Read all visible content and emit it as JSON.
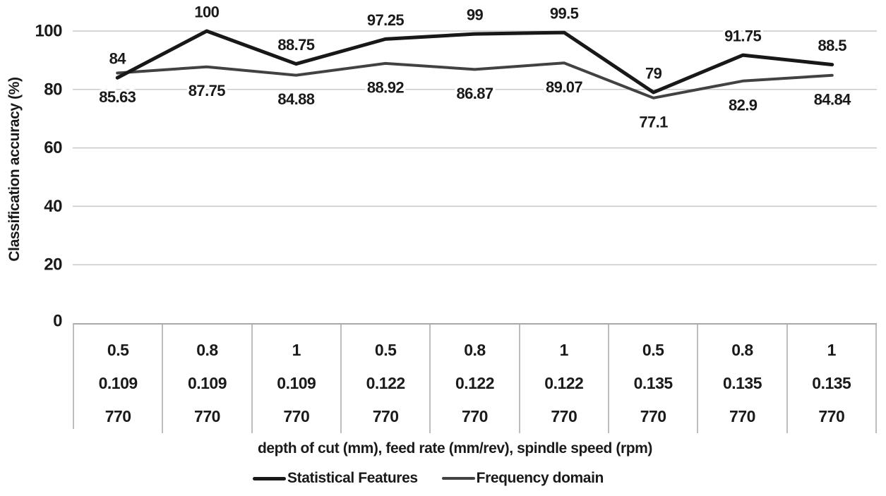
{
  "chart_data": {
    "type": "line",
    "title": "",
    "ylabel": "Classification accuracy (%)",
    "xlabel": "depth of cut (mm), feed rate (mm/rev), spindle speed (rpm)",
    "ylim": [
      0,
      100
    ],
    "yticks": [
      "0",
      "20",
      "40",
      "60",
      "80",
      "100"
    ],
    "grid": true,
    "legend_position": "bottom",
    "categories": [
      [
        "0.5",
        "0.109",
        "770"
      ],
      [
        "0.8",
        "0.109",
        "770"
      ],
      [
        "1",
        "0.109",
        "770"
      ],
      [
        "0.5",
        "0.122",
        "770"
      ],
      [
        "0.8",
        "0.122",
        "770"
      ],
      [
        "1",
        "0.122",
        "770"
      ],
      [
        "0.5",
        "0.135",
        "770"
      ],
      [
        "0.8",
        "0.135",
        "770"
      ],
      [
        "1",
        "0.135",
        "770"
      ]
    ],
    "series": [
      {
        "name": "Statistical Features",
        "color": "#181818",
        "stroke_width": 5,
        "label_position": "above",
        "values": [
          84,
          100,
          88.75,
          97.25,
          99,
          99.5,
          79,
          91.75,
          88.5
        ],
        "labels": [
          "84",
          "100",
          "88.75",
          "97.25",
          "99",
          "99.5",
          "79",
          "91.75",
          "88.5"
        ]
      },
      {
        "name": "Frequency domain",
        "color": "#424242",
        "stroke_width": 4,
        "label_position": "below",
        "values": [
          85.63,
          87.75,
          84.88,
          88.92,
          86.87,
          89.07,
          77.1,
          82.9,
          84.84
        ],
        "labels": [
          "85.63",
          "87.75",
          "84.88",
          "88.92",
          "86.87",
          "89.07",
          "77.1",
          "82.9",
          "84.84"
        ]
      }
    ],
    "colors": {
      "gridline": "#c9c9c9",
      "axis_line": "#a9a9a9",
      "table_border": "#bdbdbd",
      "text": "#1a1a1a",
      "background": "#ffffff"
    }
  }
}
